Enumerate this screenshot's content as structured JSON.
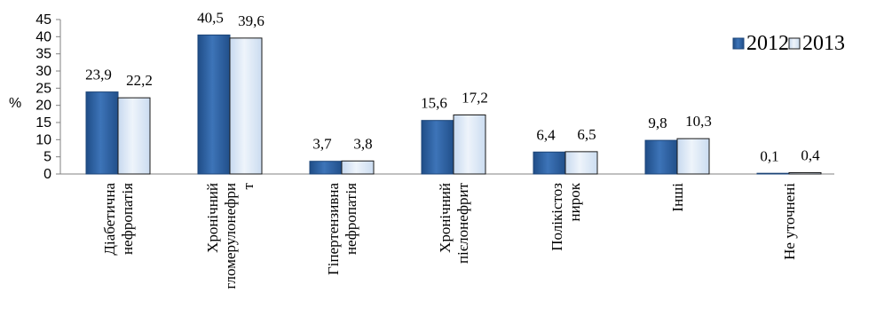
{
  "chart_data": {
    "type": "bar",
    "ylabel": "%",
    "ylim": [
      0,
      45
    ],
    "yticks": [
      "0",
      "5",
      "10",
      "15",
      "20",
      "25",
      "30",
      "35",
      "40",
      "45"
    ],
    "categories": [
      [
        "Діабетична",
        "нефропатія"
      ],
      [
        "Хронічний",
        "гломерулонефри",
        "т"
      ],
      [
        "Гіпертензивна",
        "нефропатія"
      ],
      [
        "Хронічний",
        "пієлонефрит"
      ],
      [
        "Полікістоз",
        "нирок"
      ],
      [
        "Інші"
      ],
      [
        "Не уточнені"
      ]
    ],
    "series": [
      {
        "name": "2012",
        "values": [
          23.9,
          40.5,
          3.7,
          15.6,
          6.4,
          9.8,
          0.1
        ],
        "labels": [
          "23,9",
          "40,5",
          "3,7",
          "15,6",
          "6,4",
          "9,8",
          "0,1"
        ],
        "color": "#2e5f9e"
      },
      {
        "name": "2013",
        "values": [
          22.2,
          39.6,
          3.8,
          17.2,
          6.5,
          10.3,
          0.4
        ],
        "labels": [
          "22,2",
          "39,6",
          "3,8",
          "17,2",
          "6,5",
          "10,3",
          "0,4"
        ],
        "color": "#dce8f6"
      }
    ],
    "legend_position": "top-right",
    "grid": false
  }
}
